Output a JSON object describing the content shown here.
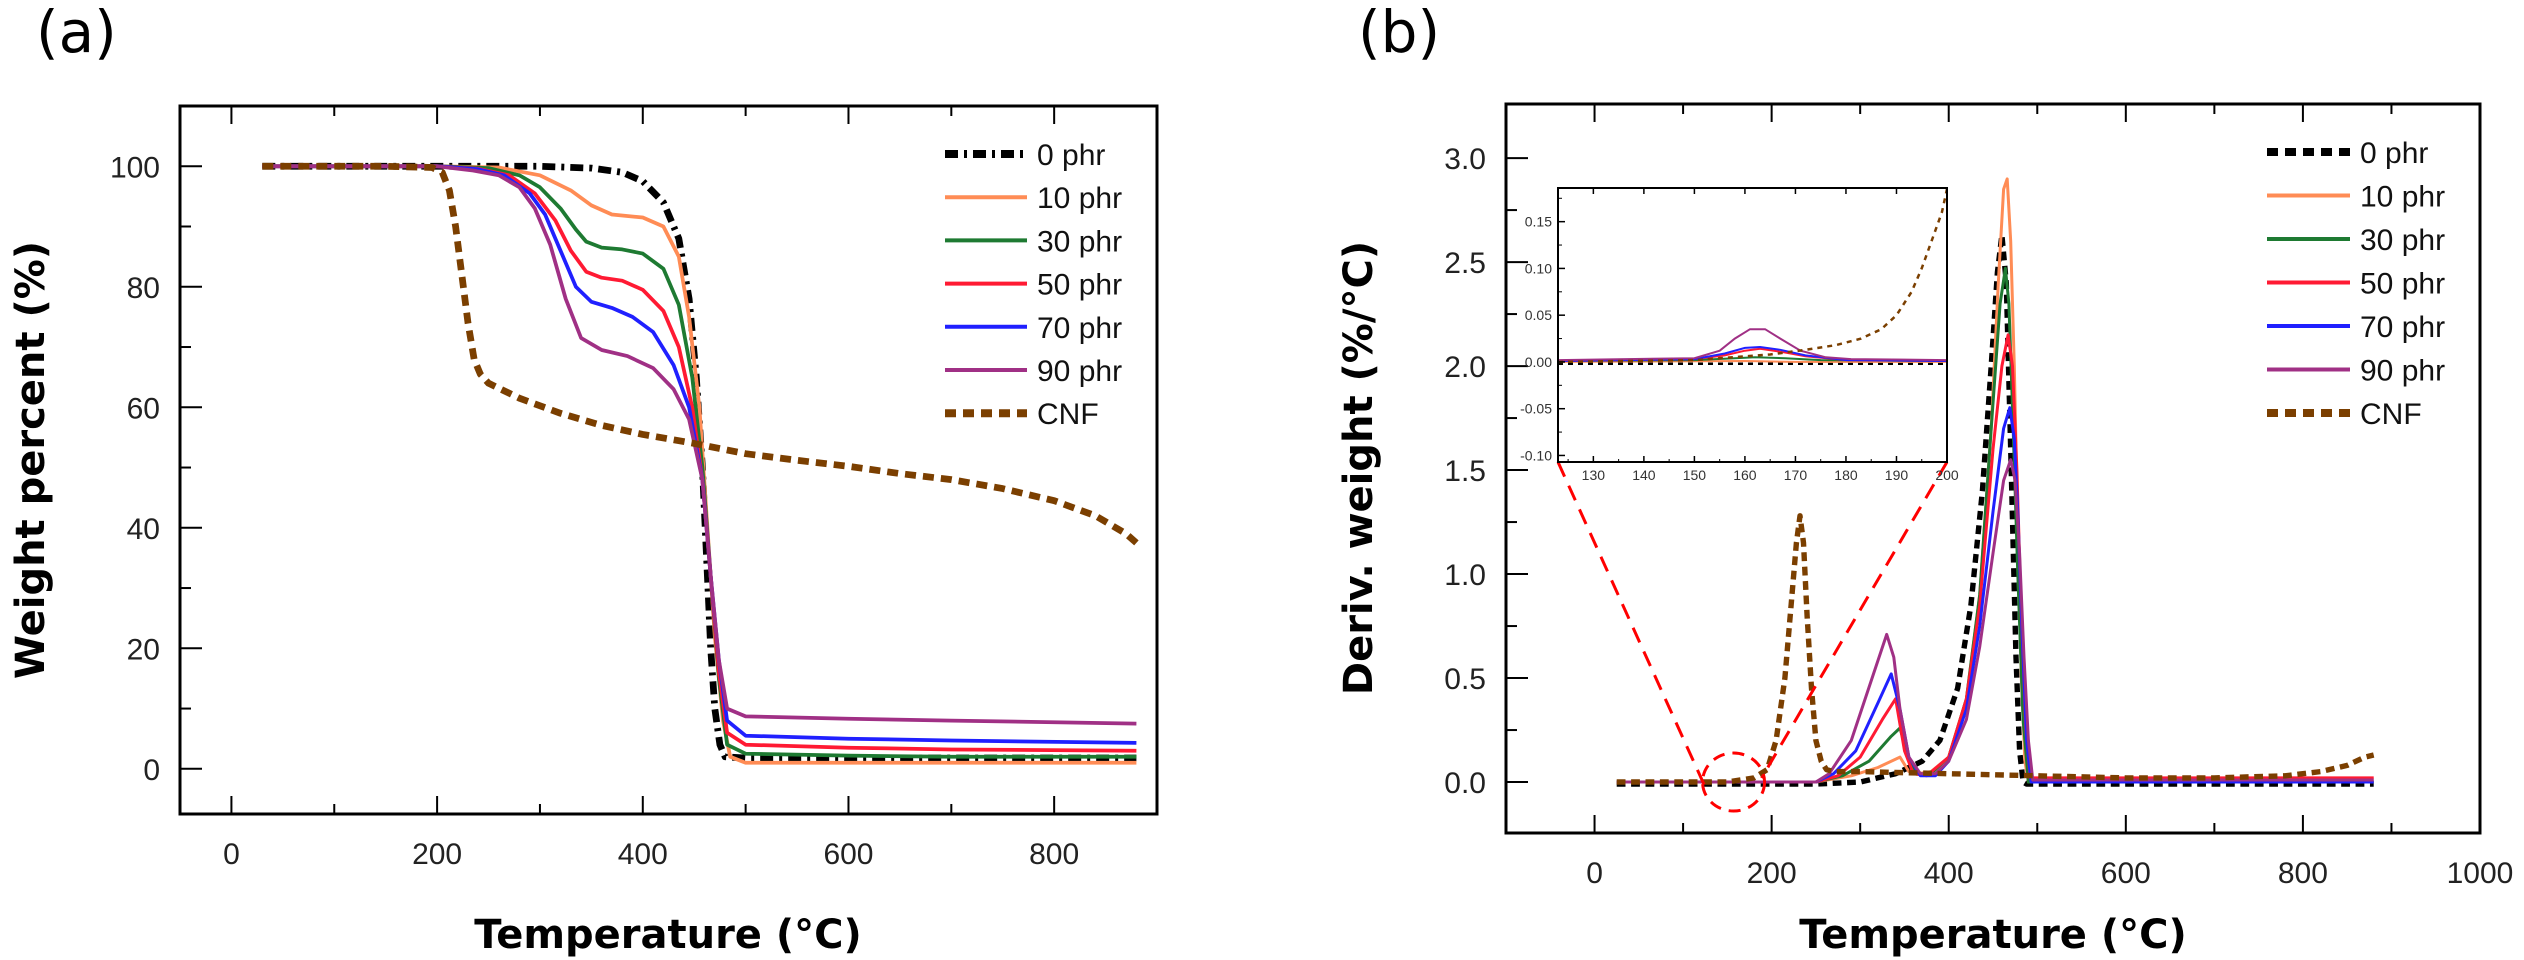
{
  "figure": {
    "panel_labels": [
      "(a)",
      "(b)"
    ]
  },
  "chart_data": [
    {
      "id": "a",
      "type": "line",
      "title": "",
      "panel_label": "(a)",
      "xlabel": "Temperature (°C)",
      "ylabel": "Weight percent (%)",
      "xlim": [
        -50,
        900
      ],
      "ylim": [
        -7.5,
        110
      ],
      "xticks": [
        0,
        200,
        400,
        600,
        800
      ],
      "xminor": [
        100,
        300,
        500,
        700
      ],
      "yticks": [
        0,
        20,
        40,
        60,
        80,
        100
      ],
      "yminor": [
        10,
        30,
        50,
        70,
        90
      ],
      "grid": false,
      "legend_position": "top-right",
      "series": [
        {
          "name": "0 phr",
          "color": "#000000",
          "style": "dashdot",
          "x": [
            30,
            150,
            300,
            350,
            380,
            400,
            420,
            435,
            445,
            452,
            458,
            462,
            466,
            470,
            475,
            480,
            500,
            600,
            700,
            880
          ],
          "y": [
            100,
            100,
            100,
            99.7,
            99,
            97.5,
            94,
            88,
            78,
            65,
            50,
            35,
            20,
            10,
            4,
            2,
            1.8,
            1.8,
            1.8,
            1.8
          ]
        },
        {
          "name": "10 phr",
          "color": "#FF8C55",
          "style": "solid",
          "x": [
            30,
            200,
            260,
            300,
            330,
            350,
            370,
            400,
            420,
            435,
            445,
            455,
            462,
            470,
            478,
            485,
            500,
            600,
            700,
            880
          ],
          "y": [
            100,
            100,
            99.8,
            98.5,
            96,
            93.5,
            92,
            91.5,
            90,
            85,
            75,
            60,
            42,
            22,
            8,
            2,
            1,
            1,
            1,
            1
          ]
        },
        {
          "name": "30 phr",
          "color": "#1E7A32",
          "style": "solid",
          "x": [
            30,
            200,
            250,
            280,
            300,
            320,
            335,
            345,
            360,
            380,
            400,
            420,
            435,
            448,
            458,
            466,
            474,
            482,
            500,
            600,
            700,
            880
          ],
          "y": [
            100,
            100,
            99.7,
            98.5,
            96.5,
            93,
            89.5,
            87.5,
            86.5,
            86.2,
            85.5,
            83,
            77,
            65,
            50,
            32,
            15,
            4,
            2.5,
            2.2,
            2,
            2
          ]
        },
        {
          "name": "50 phr",
          "color": "#FF1A33",
          "style": "solid",
          "x": [
            30,
            200,
            240,
            270,
            295,
            315,
            330,
            345,
            360,
            380,
            400,
            420,
            435,
            448,
            458,
            466,
            474,
            482,
            500,
            600,
            700,
            880
          ],
          "y": [
            100,
            100,
            99.6,
            98.5,
            95.5,
            91,
            86,
            82.5,
            81.5,
            81,
            79.5,
            76,
            70,
            60,
            48,
            32,
            16,
            6,
            4,
            3.5,
            3.2,
            3
          ]
        },
        {
          "name": "70 phr",
          "color": "#2020FF",
          "style": "solid",
          "x": [
            30,
            200,
            240,
            265,
            290,
            305,
            320,
            335,
            350,
            370,
            390,
            410,
            430,
            445,
            458,
            466,
            474,
            482,
            500,
            600,
            700,
            880
          ],
          "y": [
            100,
            100,
            99.5,
            98.5,
            95.5,
            92,
            86,
            80,
            77.5,
            76.5,
            75,
            72.5,
            67,
            60,
            48,
            32,
            18,
            8,
            5.5,
            5,
            4.7,
            4.3
          ]
        },
        {
          "name": "90 phr",
          "color": "#A03085",
          "style": "solid",
          "x": [
            30,
            200,
            235,
            260,
            280,
            295,
            310,
            325,
            340,
            360,
            385,
            410,
            430,
            445,
            458,
            466,
            474,
            482,
            500,
            600,
            700,
            880
          ],
          "y": [
            100,
            100,
            99.3,
            98.5,
            96.5,
            93,
            87,
            78,
            71.5,
            69.5,
            68.5,
            66.5,
            63,
            58,
            48,
            32,
            18,
            10,
            8.7,
            8.3,
            8,
            7.5
          ]
        },
        {
          "name": "CNF",
          "color": "#7B3F00",
          "style": "dashed",
          "x": [
            30,
            150,
            195,
            205,
            212,
            218,
            224,
            230,
            236,
            242,
            250,
            280,
            320,
            360,
            400,
            450,
            500,
            550,
            600,
            650,
            700,
            750,
            800,
            840,
            870,
            880
          ],
          "y": [
            100,
            100,
            99.8,
            99,
            96,
            90,
            82,
            74,
            68,
            65.5,
            64,
            61.5,
            59,
            57,
            55.5,
            54,
            52.3,
            51.2,
            50.2,
            49,
            48,
            46.5,
            44.5,
            42,
            39,
            37.5
          ]
        }
      ]
    },
    {
      "id": "b",
      "type": "line",
      "title": "",
      "panel_label": "(b)",
      "xlabel": "Temperature (°C)",
      "ylabel": "Deriv. weight (%/°C)",
      "xlim": [
        -100,
        1000
      ],
      "ylim": [
        -0.245,
        3.26
      ],
      "xticks": [
        0,
        200,
        400,
        600,
        800,
        1000
      ],
      "xminor": [
        100,
        300,
        500,
        700,
        900
      ],
      "yticks": [
        0.0,
        0.5,
        1.0,
        1.5,
        2.0,
        2.5,
        3.0
      ],
      "yminor": [
        0.25,
        0.75,
        1.25,
        1.75,
        2.25,
        2.75
      ],
      "grid": false,
      "legend_position": "top-right",
      "series": [
        {
          "name": "0 phr",
          "color": "#000000",
          "style": "dashed",
          "x": [
            25,
            150,
            250,
            300,
            340,
            370,
            390,
            410,
            425,
            438,
            448,
            455,
            460,
            465,
            470,
            476,
            480,
            484,
            488,
            600,
            700,
            880
          ],
          "y": [
            -0.01,
            -0.01,
            -0.01,
            0.0,
            0.04,
            0.1,
            0.2,
            0.45,
            0.85,
            1.4,
            2.0,
            2.45,
            2.63,
            2.4,
            1.6,
            0.6,
            0.15,
            0.0,
            -0.01,
            -0.01,
            -0.01,
            -0.01
          ]
        },
        {
          "name": "10 phr",
          "color": "#FF8C55",
          "style": "solid",
          "x": [
            25,
            150,
            250,
            290,
            320,
            345,
            355,
            365,
            380,
            400,
            420,
            435,
            448,
            456,
            462,
            466,
            470,
            474,
            478,
            482,
            486,
            490,
            600,
            880
          ],
          "y": [
            0.0,
            0.0,
            0.0,
            0.03,
            0.07,
            0.12,
            0.05,
            0.04,
            0.05,
            0.12,
            0.4,
            0.9,
            1.7,
            2.4,
            2.85,
            2.9,
            2.6,
            2.0,
            1.2,
            0.5,
            0.1,
            0.0,
            0.0,
            0.0
          ]
        },
        {
          "name": "30 phr",
          "color": "#1E7A32",
          "style": "solid",
          "x": [
            25,
            150,
            250,
            280,
            310,
            335,
            345,
            355,
            365,
            380,
            400,
            420,
            435,
            448,
            458,
            464,
            468,
            472,
            478,
            484,
            490,
            600,
            880
          ],
          "y": [
            0.0,
            0.0,
            0.0,
            0.03,
            0.1,
            0.22,
            0.26,
            0.1,
            0.04,
            0.04,
            0.12,
            0.4,
            0.9,
            1.7,
            2.3,
            2.47,
            2.3,
            1.8,
            1.0,
            0.3,
            0.0,
            0.0,
            0.0
          ]
        },
        {
          "name": "50 phr",
          "color": "#FF1A33",
          "style": "solid",
          "x": [
            25,
            150,
            250,
            275,
            300,
            325,
            340,
            350,
            360,
            375,
            400,
            420,
            435,
            450,
            460,
            467,
            472,
            477,
            482,
            487,
            492,
            600,
            880
          ],
          "y": [
            0.0,
            0.0,
            0.0,
            0.03,
            0.12,
            0.3,
            0.4,
            0.15,
            0.04,
            0.03,
            0.12,
            0.4,
            0.85,
            1.6,
            2.0,
            2.15,
            2.0,
            1.5,
            0.8,
            0.25,
            0.02,
            0.02,
            0.02
          ]
        },
        {
          "name": "70 phr",
          "color": "#2020FF",
          "style": "solid",
          "x": [
            25,
            150,
            250,
            270,
            295,
            320,
            335,
            345,
            355,
            368,
            385,
            400,
            420,
            435,
            450,
            462,
            469,
            474,
            478,
            483,
            488,
            493,
            600,
            880
          ],
          "y": [
            0.0,
            0.0,
            0.0,
            0.04,
            0.15,
            0.38,
            0.52,
            0.35,
            0.12,
            0.03,
            0.03,
            0.1,
            0.35,
            0.75,
            1.3,
            1.7,
            1.8,
            1.65,
            1.3,
            0.7,
            0.2,
            0.0,
            0.0,
            0.0
          ]
        },
        {
          "name": "90 phr",
          "color": "#A03085",
          "style": "solid",
          "x": [
            25,
            150,
            250,
            265,
            290,
            315,
            330,
            338,
            345,
            355,
            368,
            385,
            400,
            420,
            435,
            450,
            462,
            470,
            475,
            480,
            485,
            490,
            495,
            600,
            880
          ],
          "y": [
            0.0,
            0.0,
            0.0,
            0.04,
            0.2,
            0.52,
            0.71,
            0.6,
            0.35,
            0.12,
            0.04,
            0.04,
            0.1,
            0.3,
            0.65,
            1.1,
            1.45,
            1.55,
            1.45,
            1.1,
            0.6,
            0.2,
            0.01,
            0.01,
            0.01
          ]
        },
        {
          "name": "CNF",
          "color": "#7B3F00",
          "style": "dashed",
          "x": [
            25,
            150,
            180,
            195,
            205,
            215,
            222,
            228,
            232,
            236,
            240,
            245,
            250,
            256,
            262,
            270,
            300,
            400,
            500,
            600,
            700,
            780,
            820,
            850,
            870,
            880
          ],
          "y": [
            0.0,
            0.0,
            0.02,
            0.06,
            0.2,
            0.5,
            0.85,
            1.15,
            1.28,
            1.15,
            0.8,
            0.45,
            0.2,
            0.1,
            0.06,
            0.05,
            0.05,
            0.04,
            0.03,
            0.02,
            0.02,
            0.03,
            0.05,
            0.08,
            0.12,
            0.13
          ]
        }
      ],
      "highlight": {
        "shape": "ellipse",
        "color": "#FF0000",
        "center_x": 157,
        "center_y": 0.0,
        "note": "zoomed region shown in inset"
      },
      "inset": {
        "xlim": [
          123,
          200
        ],
        "ylim": [
          -0.107,
          0.186
        ],
        "xticks": [
          130,
          140,
          150,
          160,
          170,
          180,
          190,
          200
        ],
        "yticks": [
          -0.1,
          -0.05,
          0.0,
          0.05,
          0.1,
          0.15
        ],
        "ytick_labels": [
          "-0.10",
          "-0.05",
          "0.00",
          "0.05",
          "0.10",
          "0.15"
        ],
        "series": [
          {
            "name": "0 phr",
            "color": "#000000",
            "style": "dashed",
            "x": [
              123,
              200
            ],
            "y": [
              -0.002,
              -0.002
            ]
          },
          {
            "name": "10 phr",
            "color": "#FF8C55",
            "style": "solid",
            "x": [
              123,
              160,
              170,
              200
            ],
            "y": [
              0.0,
              0.001,
              0.0,
              0.0
            ]
          },
          {
            "name": "30 phr",
            "color": "#1E7A32",
            "style": "solid",
            "x": [
              123,
              150,
              158,
              162,
              168,
              175,
              200
            ],
            "y": [
              0.001,
              0.002,
              0.004,
              0.005,
              0.004,
              0.002,
              0.001
            ]
          },
          {
            "name": "50 phr",
            "color": "#FF1A33",
            "style": "solid",
            "x": [
              123,
              150,
              156,
              160,
              163,
              167,
              172,
              180,
              200
            ],
            "y": [
              0.001,
              0.003,
              0.007,
              0.012,
              0.014,
              0.011,
              0.006,
              0.002,
              0.001
            ]
          },
          {
            "name": "70 phr",
            "color": "#2020FF",
            "style": "solid",
            "x": [
              123,
              150,
              156,
              160,
              163,
              167,
              172,
              180,
              200
            ],
            "y": [
              0.001,
              0.003,
              0.009,
              0.015,
              0.016,
              0.013,
              0.007,
              0.002,
              0.001
            ]
          },
          {
            "name": "90 phr",
            "color": "#A03085",
            "style": "solid",
            "x": [
              123,
              150,
              155,
              158,
              161,
              164,
              167,
              171,
              176,
              181,
              200
            ],
            "y": [
              0.002,
              0.004,
              0.012,
              0.025,
              0.035,
              0.035,
              0.025,
              0.012,
              0.005,
              0.003,
              0.002
            ]
          },
          {
            "name": "CNF",
            "color": "#7B3F00",
            "style": "dashed",
            "x": [
              123,
              150,
              165,
              172,
              178,
              183,
              187,
              190,
              193,
              195,
              197,
              199,
              200
            ],
            "y": [
              0.0,
              0.002,
              0.008,
              0.013,
              0.018,
              0.025,
              0.035,
              0.05,
              0.075,
              0.1,
              0.13,
              0.16,
              0.185
            ]
          }
        ]
      }
    }
  ]
}
